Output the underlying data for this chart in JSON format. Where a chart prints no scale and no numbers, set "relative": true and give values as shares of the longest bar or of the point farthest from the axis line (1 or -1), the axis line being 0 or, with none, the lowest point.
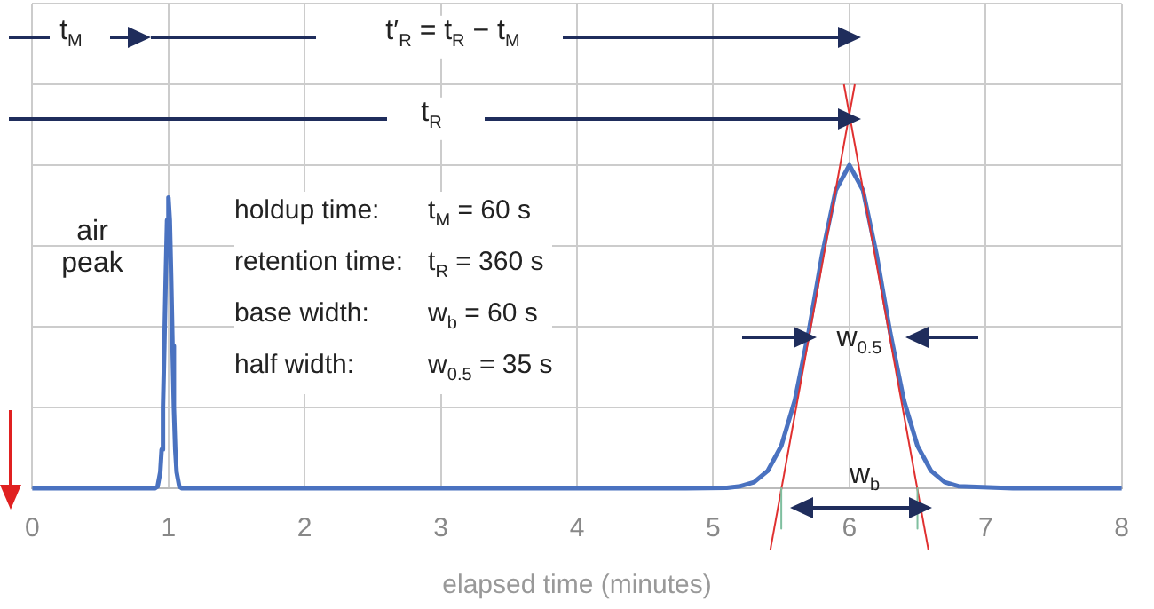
{
  "chart_data": {
    "type": "line",
    "relative": true,
    "xlabel": "elapsed time (minutes)",
    "xlim": [
      0,
      8
    ],
    "xticks": [
      0,
      1,
      2,
      3,
      4,
      5,
      6,
      7,
      8
    ],
    "grid": true,
    "legend": false,
    "marker": "none",
    "series": [
      {
        "color": "#4a72c0",
        "x": [
          0,
          0.9,
          0.92,
          0.94,
          0.95,
          0.96,
          0.97,
          0.98,
          0.99,
          1,
          1.01,
          1.02,
          1.03,
          1.04,
          1.05,
          1.06,
          1.08,
          1.1,
          4.8,
          5.1,
          5.2,
          5.3,
          5.4,
          5.5,
          5.6,
          5.7,
          5.8,
          5.9,
          6,
          6.1,
          6.2,
          6.3,
          6.4,
          6.5,
          6.6,
          6.7,
          6.8,
          7.2,
          8
        ],
        "values": [
          0,
          0,
          0.004,
          0.04,
          0.096,
          0.2,
          0.352,
          0.52,
          0.664,
          0.72,
          0.664,
          0.52,
          0.352,
          0.2,
          0.096,
          0.04,
          0.004,
          0,
          0,
          0.001,
          0.005,
          0.015,
          0.043,
          0.105,
          0.218,
          0.385,
          0.578,
          0.738,
          0.8,
          0.738,
          0.578,
          0.385,
          0.218,
          0.105,
          0.043,
          0.015,
          0.005,
          0,
          0
        ]
      },
      {
        "color": "#e03030",
        "x": [
          5.42,
          6.04
        ],
        "values": [
          -0.152,
          1
        ]
      },
      {
        "color": "#e03030",
        "x": [
          5.96,
          6.58
        ],
        "values": [
          1,
          -0.152
        ]
      },
      {
        "color": "#7fbf9f",
        "x": [
          5.5,
          5.5
        ],
        "values": [
          0,
          -0.1
        ]
      },
      {
        "color": "#7fbf9f",
        "x": [
          6.5,
          6.5
        ],
        "values": [
          0,
          -0.1
        ]
      }
    ],
    "annotations": [
      "t$_{M}$",
      "t′$_{R}$ = t$_{R}$ − t$_{M}$",
      "t$_{R}$",
      "air peak",
      "w$_{0.5}$",
      "w$_{b}$",
      "holdup time:",
      "t$_{M}$ = 60 s",
      "retention time:",
      "t$_{R}$ = 360 s",
      "base width:",
      "w$_{b}$ = 60 s",
      "half width:",
      "w$_{0.5}$ = 35 s"
    ]
  }
}
